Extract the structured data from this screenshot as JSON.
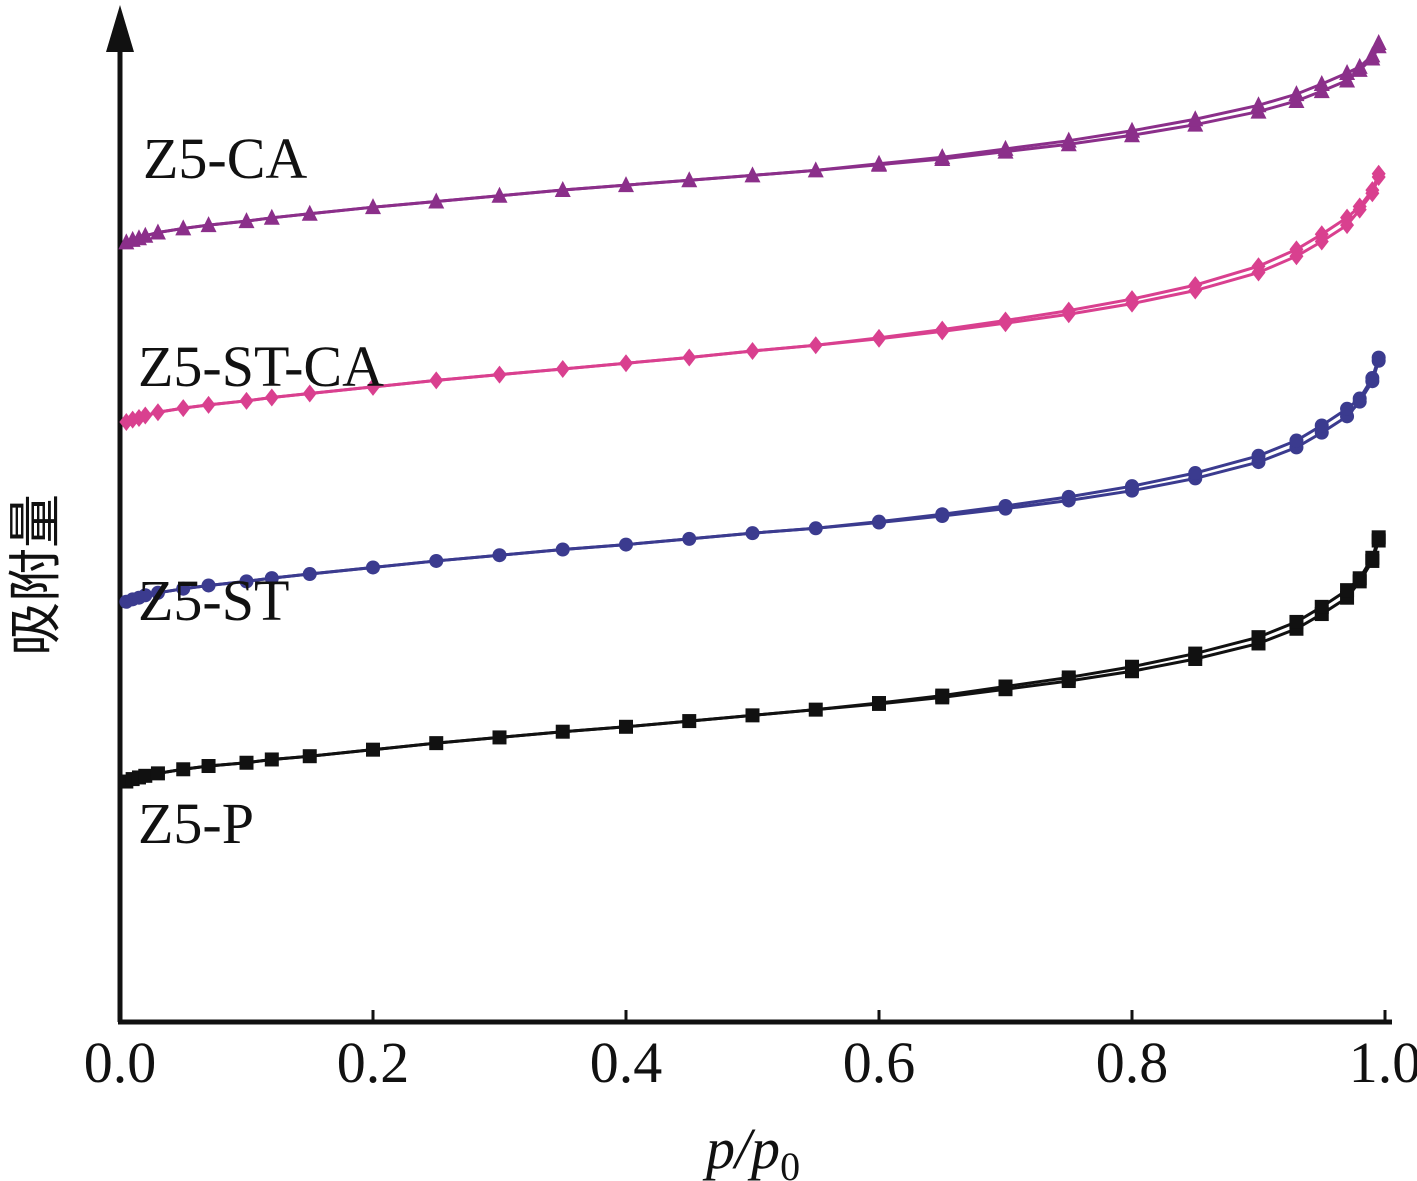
{
  "chart_data": {
    "type": "line",
    "title": "",
    "xlabel": "p/p",
    "xlabel_sub": "0",
    "ylabel": "吸附量",
    "xlim": [
      0.0,
      1.0
    ],
    "ylim": [
      0,
      100
    ],
    "x_ticks": [
      "0.0",
      "0.2",
      "0.4",
      "0.6",
      "0.8",
      "1.0"
    ],
    "y_ticks_shown": false,
    "grid": false,
    "legend": "labels placed above each curve",
    "series": [
      {
        "name": "Z5-P",
        "color": "#111111",
        "marker": "square",
        "x": [
          0.005,
          0.01,
          0.015,
          0.02,
          0.03,
          0.05,
          0.07,
          0.1,
          0.12,
          0.15,
          0.2,
          0.25,
          0.3,
          0.35,
          0.4,
          0.45,
          0.5,
          0.55,
          0.6,
          0.65,
          0.7,
          0.75,
          0.8,
          0.85,
          0.9,
          0.93,
          0.95,
          0.97,
          0.98,
          0.99,
          0.995
        ],
        "y": [
          14.5,
          14.8,
          15.0,
          15.2,
          15.5,
          16.0,
          16.4,
          16.8,
          17.2,
          17.6,
          18.4,
          19.2,
          19.9,
          20.6,
          21.2,
          21.9,
          22.6,
          23.3,
          24.0,
          24.8,
          25.8,
          26.8,
          28.0,
          29.5,
          31.4,
          33.2,
          35.0,
          37.0,
          39.0,
          41.5,
          44.0
        ]
      },
      {
        "name": "Z5-ST",
        "color": "#3b3b8f",
        "marker": "circle",
        "x": [
          0.005,
          0.01,
          0.015,
          0.02,
          0.03,
          0.05,
          0.07,
          0.1,
          0.12,
          0.15,
          0.2,
          0.25,
          0.3,
          0.35,
          0.4,
          0.45,
          0.5,
          0.55,
          0.6,
          0.65,
          0.7,
          0.75,
          0.8,
          0.85,
          0.9,
          0.93,
          0.95,
          0.97,
          0.98,
          0.99,
          0.995
        ],
        "y": [
          36.5,
          36.8,
          37.0,
          37.3,
          37.6,
          38.1,
          38.5,
          39.0,
          39.4,
          39.9,
          40.7,
          41.5,
          42.2,
          42.9,
          43.5,
          44.2,
          44.9,
          45.5,
          46.2,
          47.0,
          47.9,
          48.9,
          50.1,
          51.6,
          53.6,
          55.4,
          57.2,
          59.2,
          61.0,
          63.5,
          66.0
        ]
      },
      {
        "name": "Z5-ST-CA",
        "color": "#d9408f",
        "marker": "diamond",
        "x": [
          0.005,
          0.01,
          0.015,
          0.02,
          0.03,
          0.05,
          0.07,
          0.1,
          0.12,
          0.15,
          0.2,
          0.25,
          0.3,
          0.35,
          0.4,
          0.45,
          0.5,
          0.55,
          0.6,
          0.65,
          0.7,
          0.75,
          0.8,
          0.85,
          0.9,
          0.93,
          0.95,
          0.97,
          0.98,
          0.99,
          0.995
        ],
        "y": [
          58.5,
          58.8,
          59.0,
          59.3,
          59.7,
          60.2,
          60.6,
          61.1,
          61.5,
          62.0,
          62.8,
          63.6,
          64.3,
          65.0,
          65.7,
          66.4,
          67.2,
          67.9,
          68.7,
          69.6,
          70.6,
          71.7,
          73.0,
          74.6,
          76.8,
          78.8,
          80.6,
          82.6,
          84.5,
          86.5,
          88.5
        ]
      },
      {
        "name": "Z5-CA",
        "color": "#8b2f8a",
        "marker": "triangle",
        "x": [
          0.005,
          0.01,
          0.015,
          0.02,
          0.03,
          0.05,
          0.07,
          0.1,
          0.12,
          0.15,
          0.2,
          0.25,
          0.3,
          0.35,
          0.4,
          0.45,
          0.5,
          0.55,
          0.6,
          0.65,
          0.7,
          0.75,
          0.8,
          0.85,
          0.9,
          0.93,
          0.95,
          0.97,
          0.98,
          0.99,
          0.995
        ],
        "y": [
          80.5,
          80.8,
          81.0,
          81.3,
          81.7,
          82.2,
          82.6,
          83.1,
          83.5,
          84.0,
          84.8,
          85.5,
          86.2,
          86.9,
          87.5,
          88.1,
          88.7,
          89.3,
          90.0,
          90.7,
          91.6,
          92.5,
          93.6,
          94.9,
          96.5,
          97.8,
          99.0,
          100.3,
          101.6,
          103.0,
          104.5
        ]
      }
    ]
  }
}
